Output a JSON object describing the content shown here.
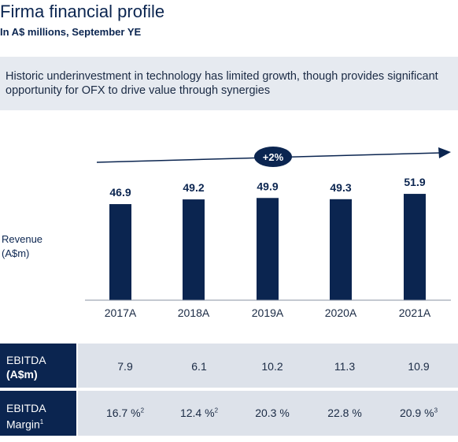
{
  "header": {
    "title": "Firma financial profile",
    "subtitle": "In A$ millions, September YE"
  },
  "callout": {
    "text": "Historic underinvestment in technology has limited growth, though provides significant opportunity for OFX to drive value through synergies"
  },
  "colors": {
    "navy": "#0b2550",
    "callout_bg": "#e6eaf0",
    "row_bg": "#dde2ea"
  },
  "chart_data": {
    "type": "bar",
    "categories": [
      "2017A",
      "2018A",
      "2019A",
      "2020A",
      "2021A"
    ],
    "values": [
      46.9,
      49.2,
      49.9,
      49.3,
      51.9
    ],
    "data_labels": [
      "46.9",
      "49.2",
      "49.9",
      "49.3",
      "51.9"
    ],
    "ylabel": "Revenue (A$m)",
    "ylabel_lines": [
      "Revenue",
      "(A$m)"
    ],
    "growth_annotation": "+2%",
    "ylim": [
      0,
      55
    ]
  },
  "table": {
    "rows": [
      {
        "label_line1": "EBITDA",
        "label_line2": "(A$m)",
        "values": [
          "7.9",
          "6.1",
          "10.2",
          "11.3",
          "10.9"
        ],
        "notes": [
          "",
          "",
          "",
          "",
          ""
        ]
      },
      {
        "label_line1": "EBITDA",
        "label_line2": "Margin",
        "label_note": "1",
        "values": [
          "16.7 %",
          "12.4 %",
          "20.3 %",
          "22.8 %",
          "20.9 %"
        ],
        "notes": [
          "2",
          "2",
          "",
          "",
          "3"
        ]
      }
    ]
  }
}
